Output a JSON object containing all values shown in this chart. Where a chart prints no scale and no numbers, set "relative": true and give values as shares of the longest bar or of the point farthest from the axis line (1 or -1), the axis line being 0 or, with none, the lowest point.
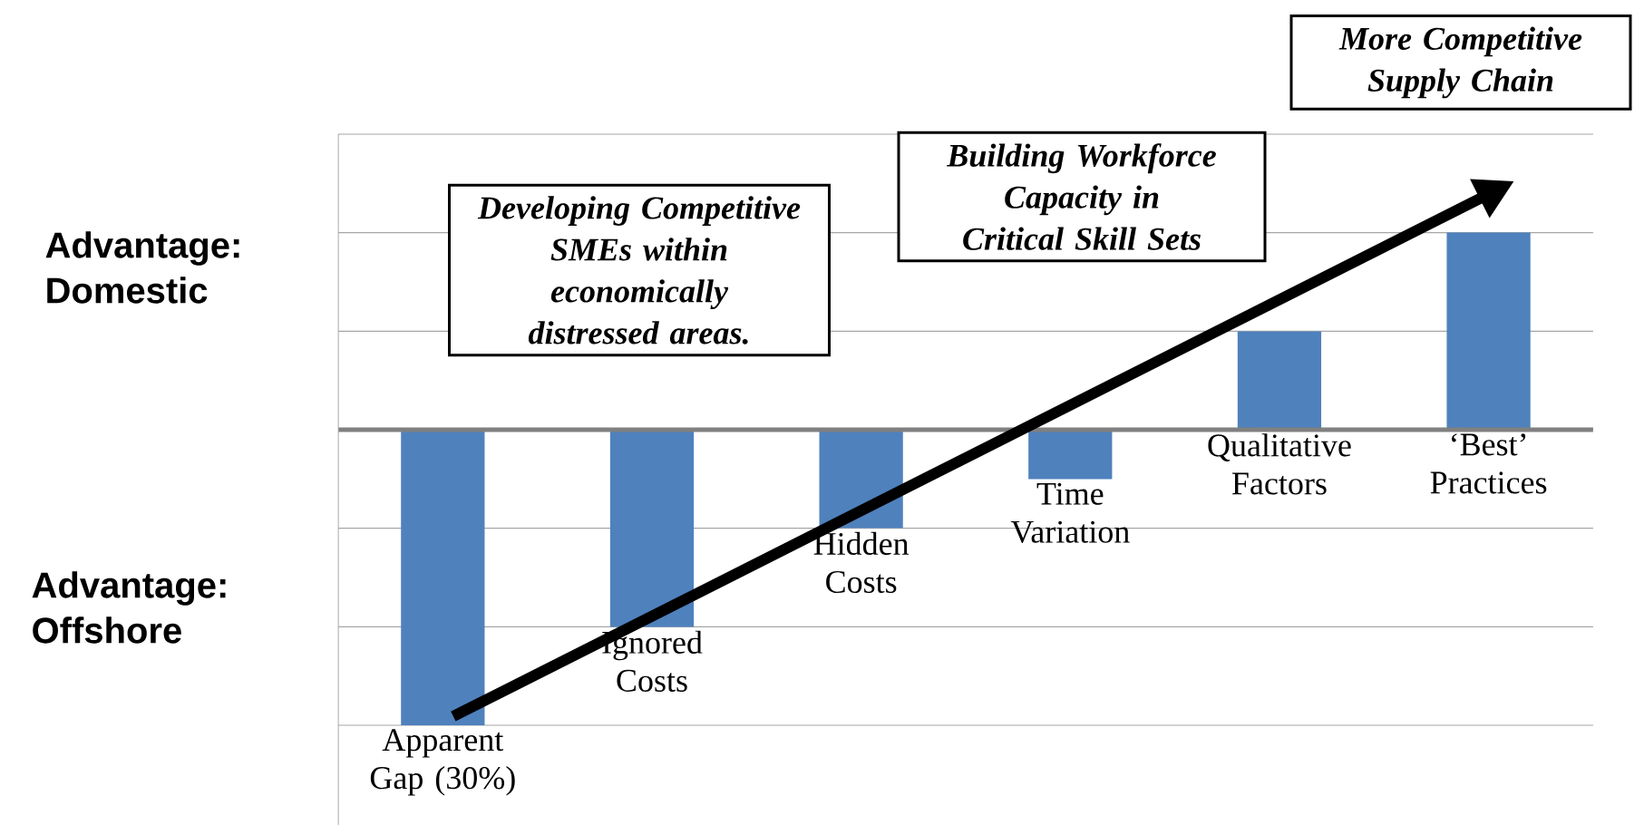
{
  "chart_data": {
    "type": "bar",
    "relative": true,
    "categories": [
      "Apparent Gap (30%)",
      "Ignored Costs",
      "Hidden Costs",
      "Time Variation",
      "Qualitative Factors",
      "‘Best’ Practices"
    ],
    "values": [
      -1,
      -0.667,
      -0.333,
      -0.167,
      0.333,
      0.667
    ],
    "color": "#4f81bd",
    "grid": "y",
    "annotations": [
      "Advantage: Domestic",
      "Advantage: Offshore",
      "Developing Competitive SMEs within economically distressed areas.",
      "Building Workforce Capacity in Critical Skill Sets",
      "More Competitive Supply Chain"
    ]
  }
}
